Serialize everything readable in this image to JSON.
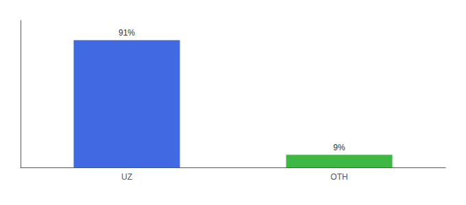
{
  "chart_data": {
    "type": "bar",
    "categories": [
      "UZ",
      "OTH"
    ],
    "values": [
      91,
      9
    ],
    "value_labels": [
      "91%",
      "9%"
    ],
    "colors": [
      "#4169e1",
      "#3cb843"
    ],
    "ylim": [
      0,
      105
    ],
    "data_labels": true,
    "tick_labels": "x",
    "grid": false
  }
}
